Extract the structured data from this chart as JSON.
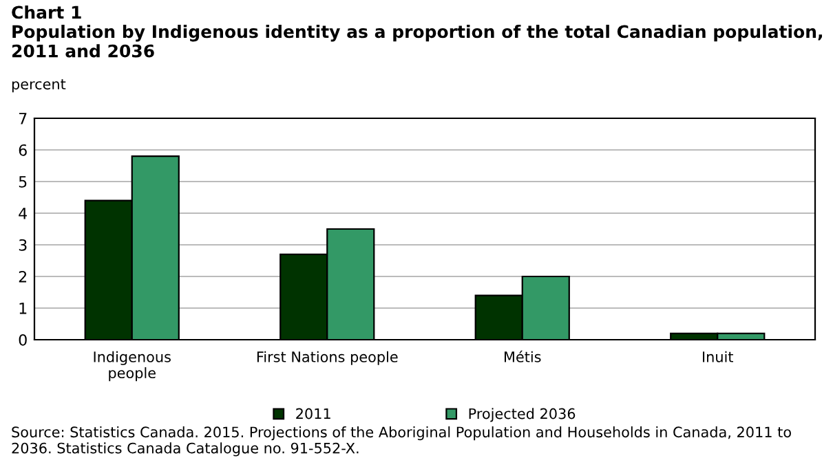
{
  "chart_data": {
    "type": "bar",
    "title": "Chart 1",
    "subtitle": "Population by Indigenous identity as a proportion of the total Canadian population, 2011 and 2036",
    "ylabel": "percent",
    "categories": [
      "Indigenous\npeople",
      "First Nations people",
      "Métis",
      "Inuit"
    ],
    "series": [
      {
        "name": "2011",
        "color": "#003300",
        "values": [
          4.4,
          2.7,
          1.4,
          0.2
        ]
      },
      {
        "name": "Projected 2036",
        "color": "#339966",
        "values": [
          5.8,
          3.5,
          2.0,
          0.2
        ]
      }
    ],
    "ylim": [
      0,
      7
    ],
    "yticks": [
      0,
      1,
      2,
      3,
      4,
      5,
      6,
      7
    ],
    "grid": "y",
    "legend": "bottom",
    "annotations": [
      "Source: Statistics Canada. 2015. Projections of the Aboriginal Population and Households in Canada, 2011 to 2036. Statistics Canada Catalogue no. 91-552-X."
    ]
  }
}
